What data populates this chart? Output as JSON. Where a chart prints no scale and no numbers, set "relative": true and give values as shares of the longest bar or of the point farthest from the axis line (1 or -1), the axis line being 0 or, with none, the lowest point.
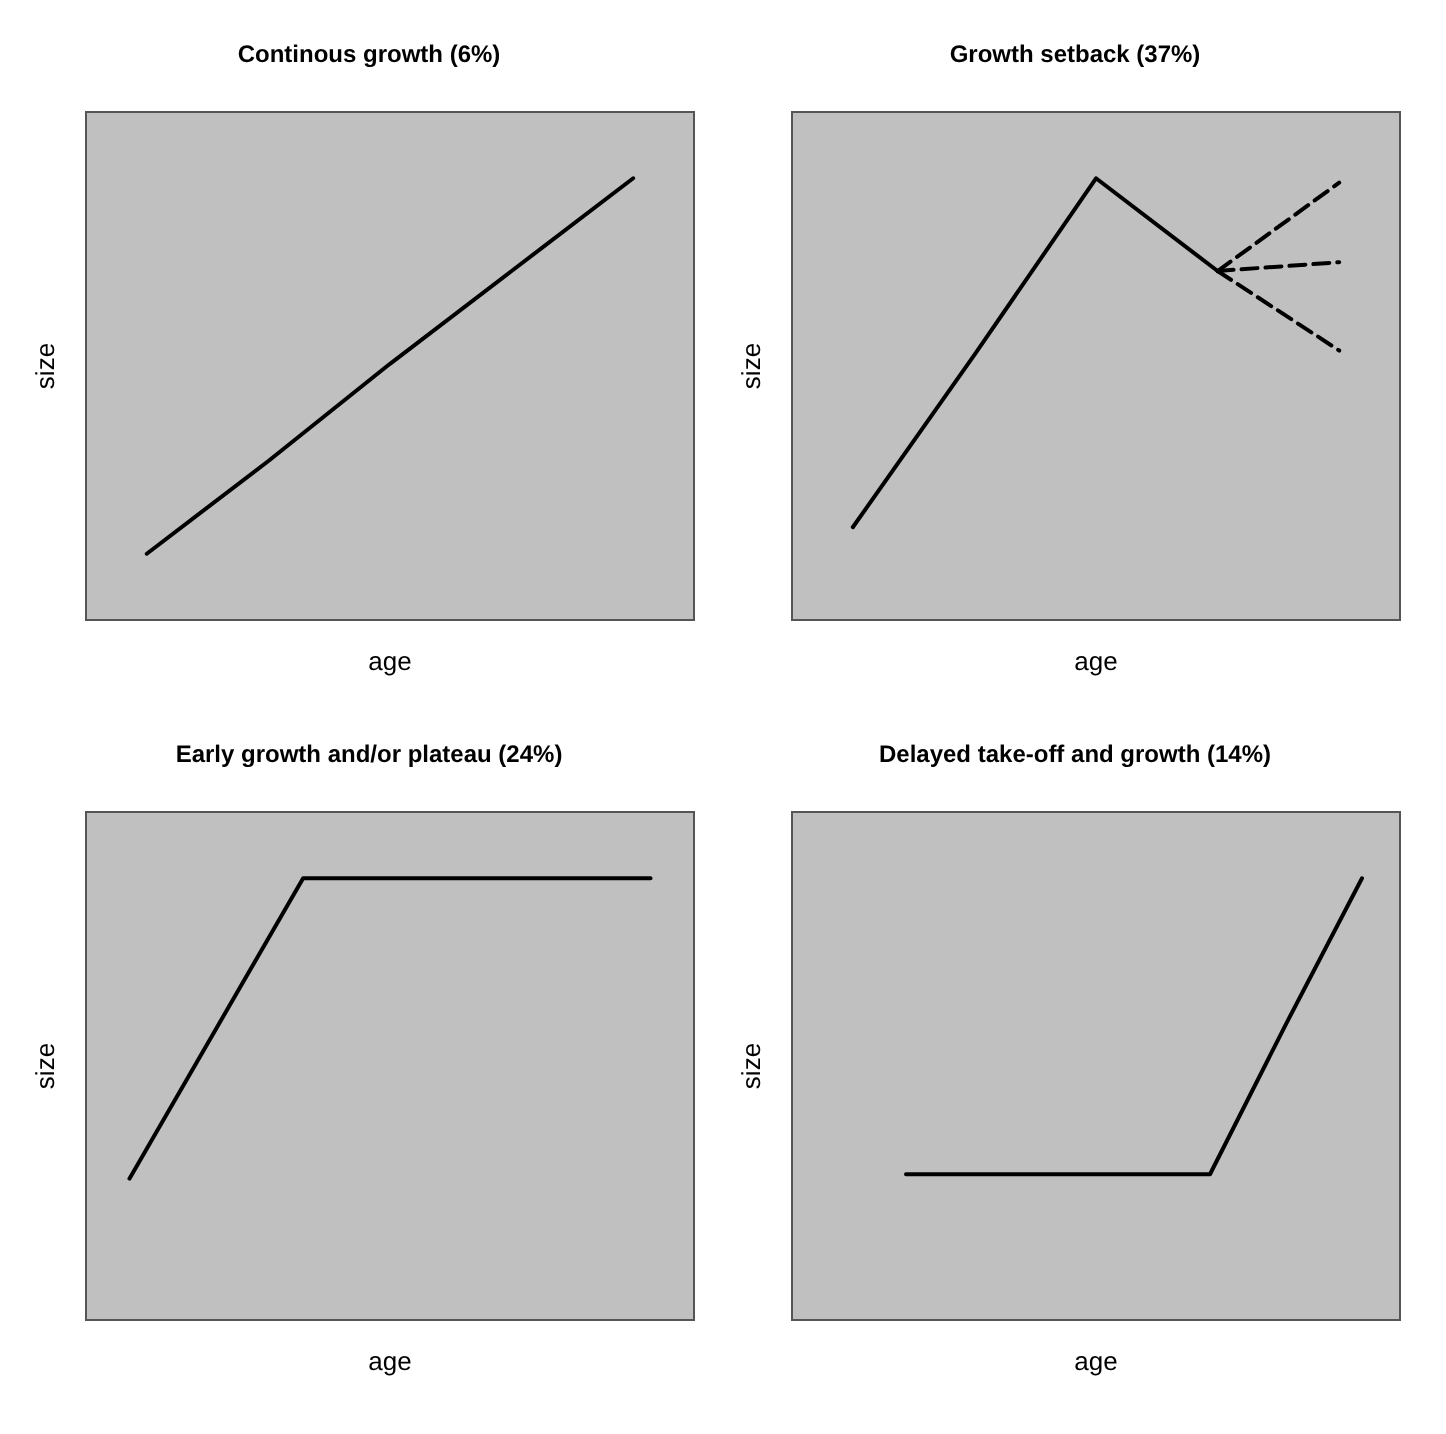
{
  "chart_data": [
    {
      "type": "line",
      "title": "Continous growth (6%)",
      "xlabel": "age",
      "ylabel": "size",
      "relative": true,
      "categories": [
        null,
        null,
        null,
        null,
        null
      ],
      "series": [
        {
          "color": "#000000",
          "values": [
            0.15,
            0.36,
            0.58,
            0.79,
            1
          ]
        }
      ],
      "grid": false,
      "marker": "none",
      "line_style": "solid"
    },
    {
      "type": "line",
      "title": "Growth setback (37%)",
      "xlabel": "age",
      "ylabel": "size",
      "relative": true,
      "categories": [
        null,
        null,
        null,
        null,
        null
      ],
      "series": [
        {
          "color": "#000000",
          "values": [
            0.21,
            0.6,
            1,
            0.79,
            null
          ],
          "line_style": "solid"
        },
        {
          "color": "#000000",
          "values": [
            null,
            null,
            null,
            0.79,
            0.99
          ],
          "line_style": "dashed"
        },
        {
          "color": "#000000",
          "values": [
            null,
            null,
            null,
            0.79,
            0.81
          ],
          "line_style": "dashed"
        },
        {
          "color": "#000000",
          "values": [
            null,
            null,
            null,
            0.79,
            0.61
          ],
          "line_style": "dashed"
        }
      ],
      "grid": false,
      "marker": "none"
    },
    {
      "type": "line",
      "title": "Early growth and/or plateau (24%)",
      "xlabel": "age",
      "ylabel": "size",
      "relative": true,
      "categories": [
        null,
        null,
        null,
        null,
        null,
        null,
        null
      ],
      "series": [
        {
          "color": "#000000",
          "values": [
            0.32,
            0.66,
            1,
            1,
            1,
            1,
            1
          ]
        }
      ],
      "grid": false,
      "marker": "none",
      "line_style": "solid"
    },
    {
      "type": "line",
      "title": "Delayed take-off and growth (14%)",
      "xlabel": "age",
      "ylabel": "size",
      "relative": true,
      "categories": [
        null,
        null,
        null,
        null,
        null,
        null,
        null,
        null
      ],
      "series": [
        {
          "color": "#000000",
          "values": [
            null,
            0.33,
            0.33,
            0.33,
            0.33,
            0.33,
            0.67,
            1
          ]
        }
      ],
      "grid": false,
      "marker": "none",
      "line_style": "solid"
    }
  ]
}
